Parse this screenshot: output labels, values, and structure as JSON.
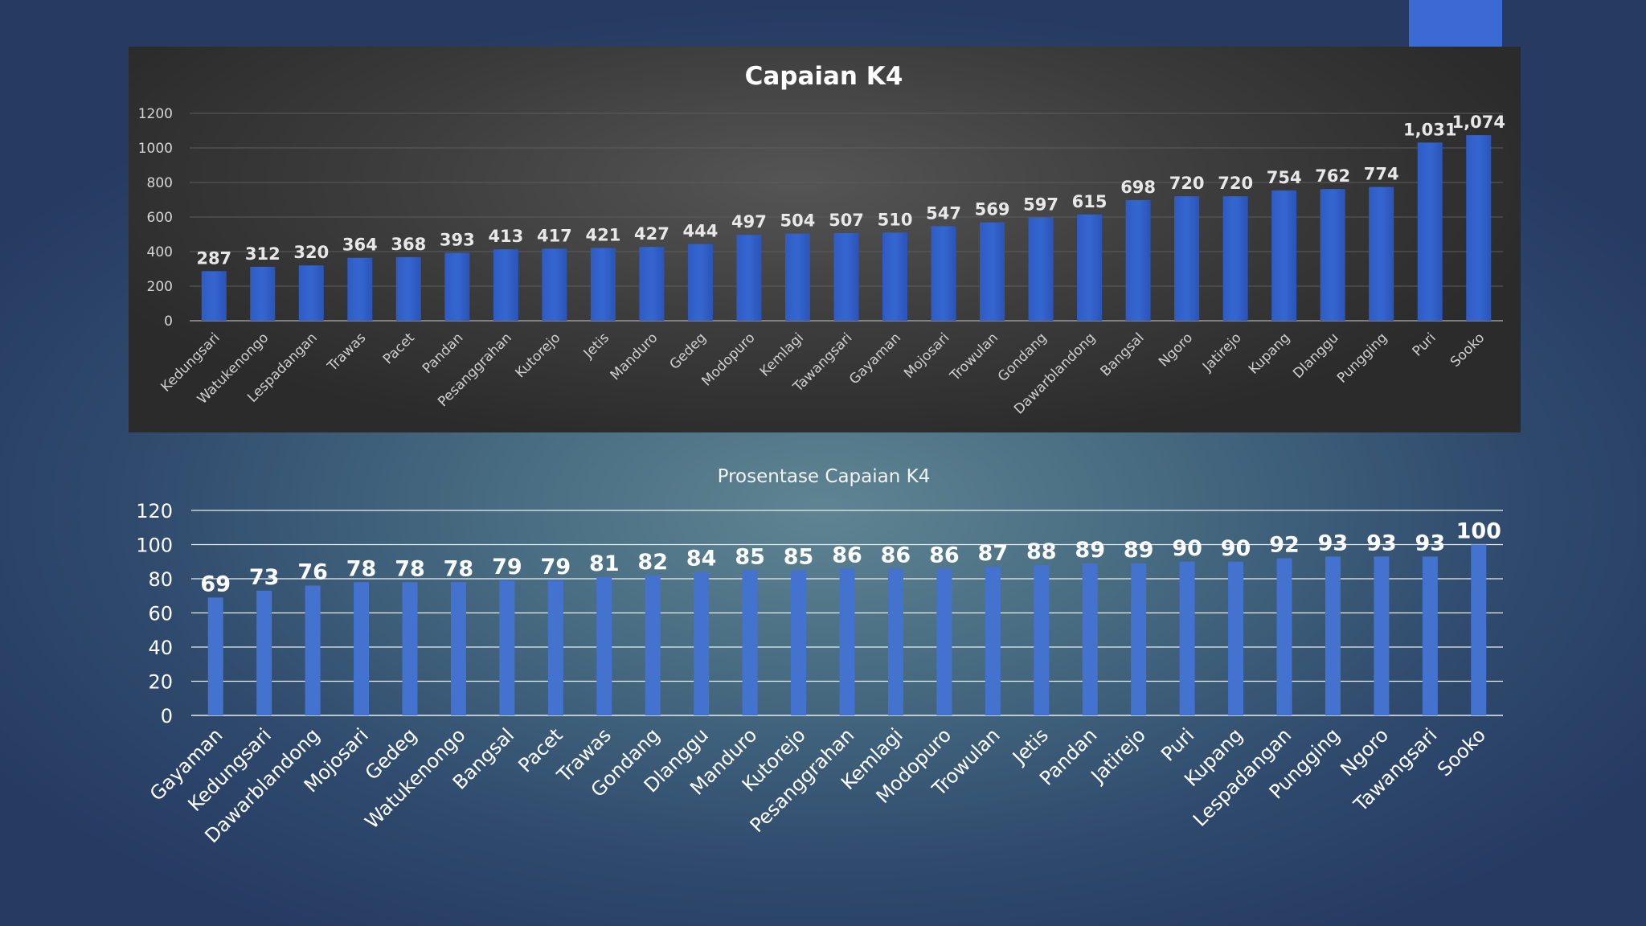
{
  "colors": {
    "bar": "#3566d0",
    "bar_light": "#4472cf",
    "accent": "#3c6ad4",
    "panel_bg": "#3a3a3a"
  },
  "chart_data": [
    {
      "type": "bar",
      "title": "Capaian K4",
      "categories": [
        "Kedungsari",
        "Watukenongo",
        "Lespadangan",
        "Trawas",
        "Pacet",
        "Pandan",
        "Pesanggrahan",
        "Kutorejo",
        "Jetis",
        "Manduro",
        "Gedeg",
        "Modopuro",
        "Kemlagi",
        "Tawangsari",
        "Gayaman",
        "Mojosari",
        "Trowulan",
        "Gondang",
        "Dawarblandong",
        "Bangsal",
        "Ngoro",
        "Jatirejo",
        "Kupang",
        "Dlanggu",
        "Pungging",
        "Puri",
        "Sooko"
      ],
      "values": [
        287,
        312,
        320,
        364,
        368,
        393,
        413,
        417,
        421,
        427,
        444,
        497,
        504,
        507,
        510,
        547,
        569,
        597,
        615,
        698,
        720,
        720,
        754,
        762,
        774,
        1031,
        1074
      ],
      "data_labels": [
        "287",
        "312",
        "320",
        "364",
        "368",
        "393",
        "413",
        "417",
        "421",
        "427",
        "444",
        "497",
        "504",
        "507",
        "510",
        "547",
        "569",
        "597",
        "615",
        "698",
        "720",
        "720",
        "754",
        "762",
        "774",
        "1,031",
        "1,074"
      ],
      "yticks": [
        "0",
        "200",
        "400",
        "600",
        "800",
        "1000",
        "1200"
      ],
      "ylim": [
        0,
        1200
      ],
      "xlabel": "",
      "ylabel": "",
      "grid": true,
      "legend": "none"
    },
    {
      "type": "bar",
      "title": "Prosentase Capaian K4",
      "categories": [
        "Gayaman",
        "Kedungsari",
        "Dawarblandong",
        "Mojosari",
        "Gedeg",
        "Watukenongo",
        "Bangsal",
        "Pacet",
        "Trawas",
        "Gondang",
        "Dlanggu",
        "Manduro",
        "Kutorejo",
        "Pesanggrahan",
        "Kemlagi",
        "Modopuro",
        "Trowulan",
        "Jetis",
        "Pandan",
        "Jatirejo",
        "Puri",
        "Kupang",
        "Lespadangan",
        "Pungging",
        "Ngoro",
        "Tawangsari",
        "Sooko"
      ],
      "values": [
        69,
        73,
        76,
        78,
        78,
        78,
        79,
        79,
        81,
        82,
        84,
        85,
        85,
        86,
        86,
        86,
        87,
        88,
        89,
        89,
        90,
        90,
        92,
        93,
        93,
        93,
        100
      ],
      "data_labels": [
        "69",
        "73",
        "76",
        "78",
        "78",
        "78",
        "79",
        "79",
        "81",
        "82",
        "84",
        "85",
        "85",
        "86",
        "86",
        "86",
        "87",
        "88",
        "89",
        "89",
        "90",
        "90",
        "92",
        "93",
        "93",
        "93",
        "100"
      ],
      "yticks": [
        "0",
        "20",
        "40",
        "60",
        "80",
        "100",
        "120"
      ],
      "ylim": [
        0,
        120
      ],
      "xlabel": "",
      "ylabel": "",
      "grid": true,
      "legend": "none"
    }
  ]
}
